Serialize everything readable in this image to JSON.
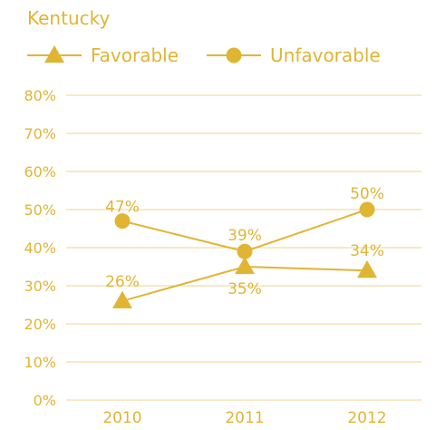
{
  "chart_data": {
    "type": "line",
    "title": "Kentucky",
    "categories": [
      "2010",
      "2011",
      "2012"
    ],
    "series": [
      {
        "name": "Favorable",
        "values": [
          26,
          35,
          34
        ],
        "marker": "triangle",
        "labels": [
          "26%",
          "35%",
          "34%"
        ]
      },
      {
        "name": "Unfavorable",
        "values": [
          47,
          39,
          50
        ],
        "marker": "circle",
        "labels": [
          "47%",
          "39%",
          "50%"
        ]
      }
    ],
    "ylim": [
      0,
      80
    ],
    "yticks": [
      "0%",
      "10%",
      "20%",
      "30%",
      "40%",
      "50%",
      "60%",
      "70%",
      "80%"
    ],
    "grid": true,
    "legend": "top-left"
  },
  "colors": {
    "accent": "#e0b534",
    "grid": "#efd48a"
  }
}
